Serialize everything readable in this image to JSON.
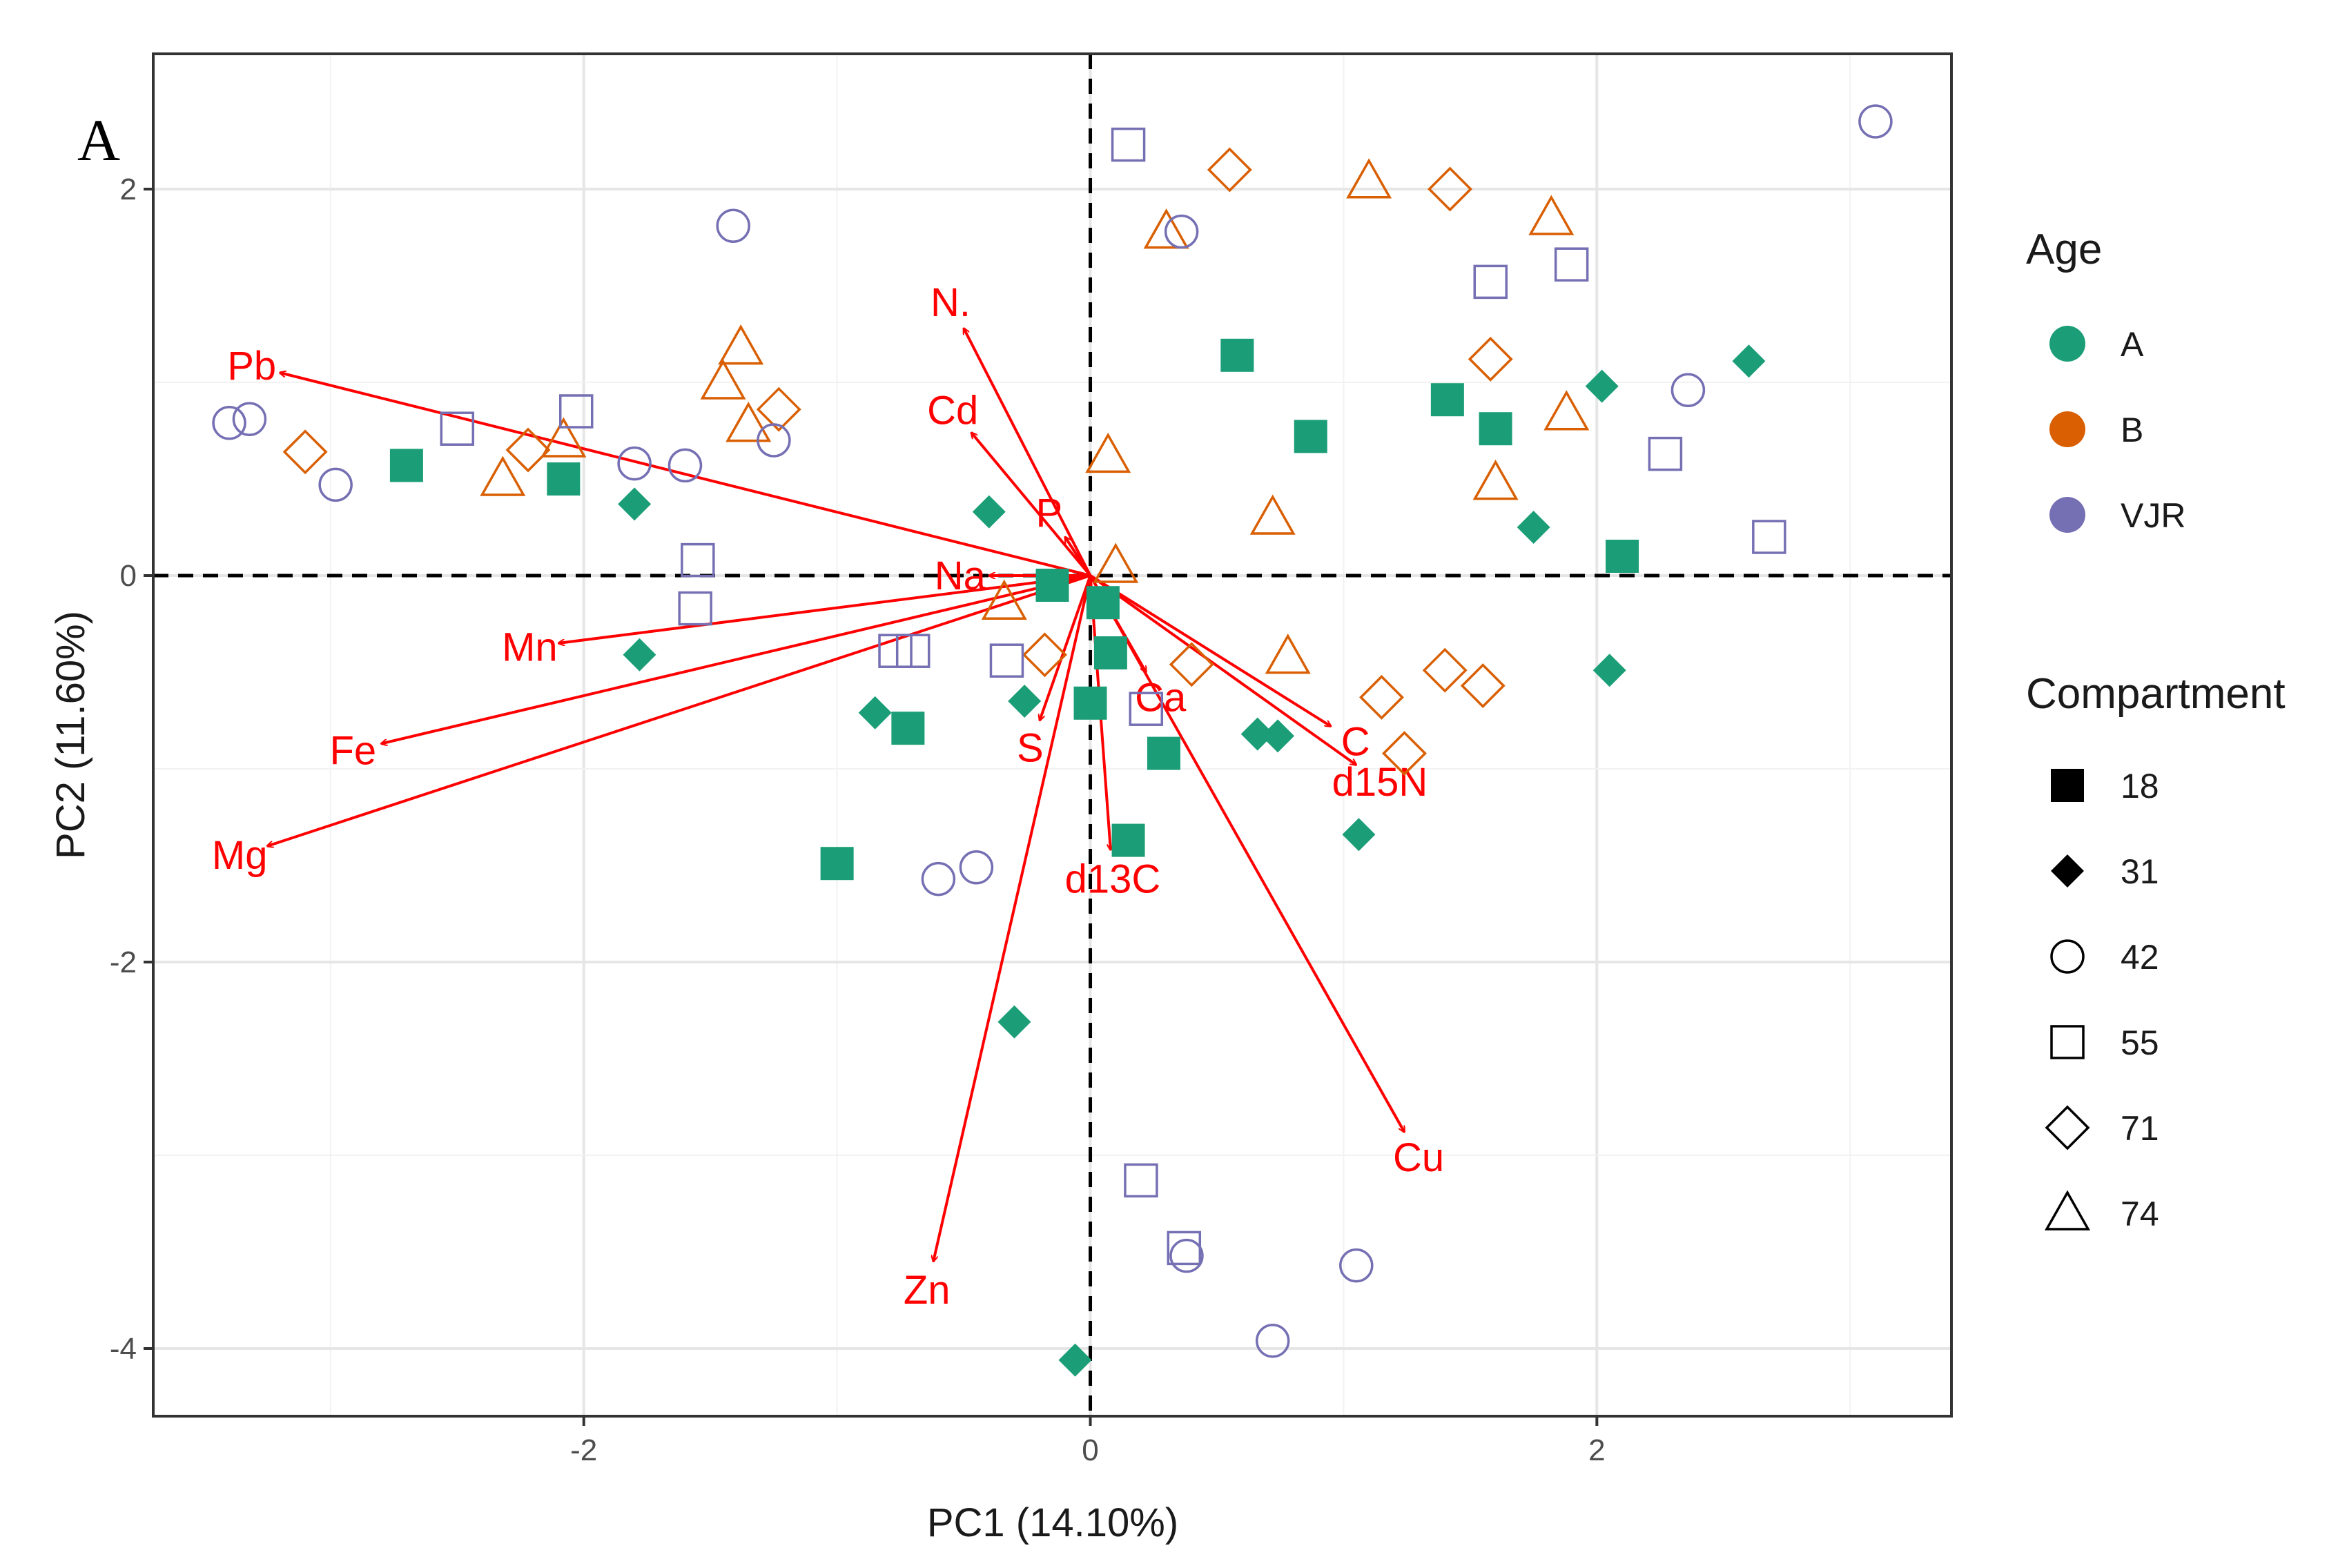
{
  "chart_data": {
    "type": "scatter",
    "subtype": "pca-biplot",
    "panel_label": "A",
    "xlabel": "PC1 (14.10%)",
    "ylabel": "PC2 (11.60%)",
    "xlim": [
      -3.7,
      3.4
    ],
    "ylim": [
      -4.35,
      2.7
    ],
    "xticks": [
      -2,
      0,
      2
    ],
    "yticks": [
      -4,
      -2,
      0,
      2
    ],
    "grid": true,
    "reference_lines": {
      "x": 0,
      "y": 0,
      "style": "dashed"
    },
    "colors": {
      "A": "#1b9e77",
      "B": "#d95f02",
      "VJR": "#7570b3",
      "vector": "#ff0000"
    },
    "legend": {
      "position": "right",
      "age_title": "Age",
      "age_items": [
        "A",
        "B",
        "VJR"
      ],
      "compartment_title": "Compartment",
      "compartment_items": [
        {
          "label": "18",
          "shape": "square-filled"
        },
        {
          "label": "31",
          "shape": "diamond-filled"
        },
        {
          "label": "42",
          "shape": "circle-open"
        },
        {
          "label": "55",
          "shape": "square-open"
        },
        {
          "label": "71",
          "shape": "diamond-open"
        },
        {
          "label": "74",
          "shape": "triangle-open"
        }
      ]
    },
    "vectors": [
      {
        "name": "Pb",
        "x": -3.2,
        "y": 1.05
      },
      {
        "name": "Mn",
        "x": -2.1,
        "y": -0.35
      },
      {
        "name": "Fe",
        "x": -2.8,
        "y": -0.87
      },
      {
        "name": "Mg",
        "x": -3.25,
        "y": -1.4
      },
      {
        "name": "N.",
        "x": -0.5,
        "y": 1.28
      },
      {
        "name": "Cd",
        "x": -0.47,
        "y": 0.74
      },
      {
        "name": "P",
        "x": -0.1,
        "y": 0.2
      },
      {
        "name": "Na",
        "x": -0.4,
        "y": 0.0
      },
      {
        "name": "S",
        "x": -0.2,
        "y": -0.75
      },
      {
        "name": "Ca",
        "x": 0.22,
        "y": -0.5
      },
      {
        "name": "C",
        "x": 0.95,
        "y": -0.78
      },
      {
        "name": "d15N",
        "x": 1.05,
        "y": -0.98
      },
      {
        "name": "d13C",
        "x": 0.08,
        "y": -1.42
      },
      {
        "name": "Cu",
        "x": 1.24,
        "y": -2.88
      },
      {
        "name": "Zn",
        "x": -0.62,
        "y": -3.55
      }
    ],
    "series": [
      {
        "name": "A / 18",
        "age": "A",
        "compartment": "18",
        "points": [
          [
            -2.7,
            0.57
          ],
          [
            -2.08,
            0.5
          ],
          [
            -1.0,
            -1.49
          ],
          [
            -0.72,
            -0.79
          ],
          [
            -0.15,
            -0.05
          ],
          [
            0.05,
            -0.14
          ],
          [
            0.08,
            -0.4
          ],
          [
            0.0,
            -0.66
          ],
          [
            0.15,
            -1.37
          ],
          [
            0.29,
            -0.92
          ],
          [
            0.58,
            1.14
          ],
          [
            0.87,
            0.72
          ],
          [
            1.41,
            0.91
          ],
          [
            1.6,
            0.76
          ],
          [
            2.1,
            0.1
          ]
        ]
      },
      {
        "name": "A / 31",
        "age": "A",
        "compartment": "31",
        "points": [
          [
            -1.8,
            0.37
          ],
          [
            -1.78,
            -0.41
          ],
          [
            -0.85,
            -0.71
          ],
          [
            -0.26,
            -0.65
          ],
          [
            -0.3,
            -2.31
          ],
          [
            -0.06,
            -4.06
          ],
          [
            -0.4,
            0.33
          ],
          [
            0.66,
            -0.82
          ],
          [
            0.74,
            -0.83
          ],
          [
            1.06,
            -1.34
          ],
          [
            1.75,
            0.25
          ],
          [
            2.02,
            0.98
          ],
          [
            2.05,
            -0.49
          ],
          [
            2.6,
            1.11
          ]
        ]
      },
      {
        "name": "B / 71",
        "age": "B",
        "compartment": "71",
        "points": [
          [
            -3.1,
            0.64
          ],
          [
            -2.22,
            0.65
          ],
          [
            -1.23,
            0.86
          ],
          [
            -0.18,
            -0.41
          ],
          [
            0.4,
            -0.46
          ],
          [
            0.55,
            2.1
          ],
          [
            1.15,
            -0.63
          ],
          [
            1.24,
            -0.92
          ],
          [
            1.4,
            -0.49
          ],
          [
            1.42,
            2.0
          ],
          [
            1.55,
            -0.57
          ],
          [
            1.58,
            1.12
          ]
        ]
      },
      {
        "name": "B / 74",
        "age": "B",
        "compartment": "74",
        "points": [
          [
            -2.32,
            0.5
          ],
          [
            -2.08,
            0.7
          ],
          [
            -1.45,
            1.0
          ],
          [
            -1.38,
            1.18
          ],
          [
            -1.35,
            0.78
          ],
          [
            -0.34,
            -0.14
          ],
          [
            0.07,
            0.62
          ],
          [
            0.1,
            0.05
          ],
          [
            0.3,
            1.78
          ],
          [
            0.72,
            0.3
          ],
          [
            0.78,
            -0.42
          ],
          [
            1.1,
            2.04
          ],
          [
            1.6,
            0.48
          ],
          [
            1.82,
            1.85
          ],
          [
            1.88,
            0.84
          ]
        ]
      },
      {
        "name": "VJR / 42",
        "age": "VJR",
        "compartment": "42",
        "points": [
          [
            -3.4,
            0.79
          ],
          [
            -3.32,
            0.81
          ],
          [
            -2.98,
            0.47
          ],
          [
            -1.8,
            0.58
          ],
          [
            -1.6,
            0.57
          ],
          [
            -1.41,
            1.81
          ],
          [
            -1.25,
            0.7
          ],
          [
            -0.6,
            -1.57
          ],
          [
            -0.45,
            -1.51
          ],
          [
            0.36,
            1.78
          ],
          [
            0.38,
            -3.52
          ],
          [
            0.72,
            -3.96
          ],
          [
            1.05,
            -3.57
          ],
          [
            2.36,
            0.96
          ],
          [
            3.1,
            2.35
          ]
        ]
      },
      {
        "name": "VJR / 55",
        "age": "VJR",
        "compartment": "55",
        "points": [
          [
            -2.5,
            0.76
          ],
          [
            -2.03,
            0.85
          ],
          [
            -1.55,
            0.08
          ],
          [
            -1.56,
            -0.17
          ],
          [
            -0.77,
            -0.39
          ],
          [
            -0.7,
            -0.39
          ],
          [
            -0.33,
            -0.44
          ],
          [
            0.15,
            2.23
          ],
          [
            0.22,
            -0.69
          ],
          [
            0.2,
            -3.13
          ],
          [
            0.37,
            -3.48
          ],
          [
            1.58,
            1.52
          ],
          [
            1.9,
            1.61
          ],
          [
            2.27,
            0.63
          ],
          [
            2.68,
            0.2
          ]
        ]
      }
    ]
  }
}
